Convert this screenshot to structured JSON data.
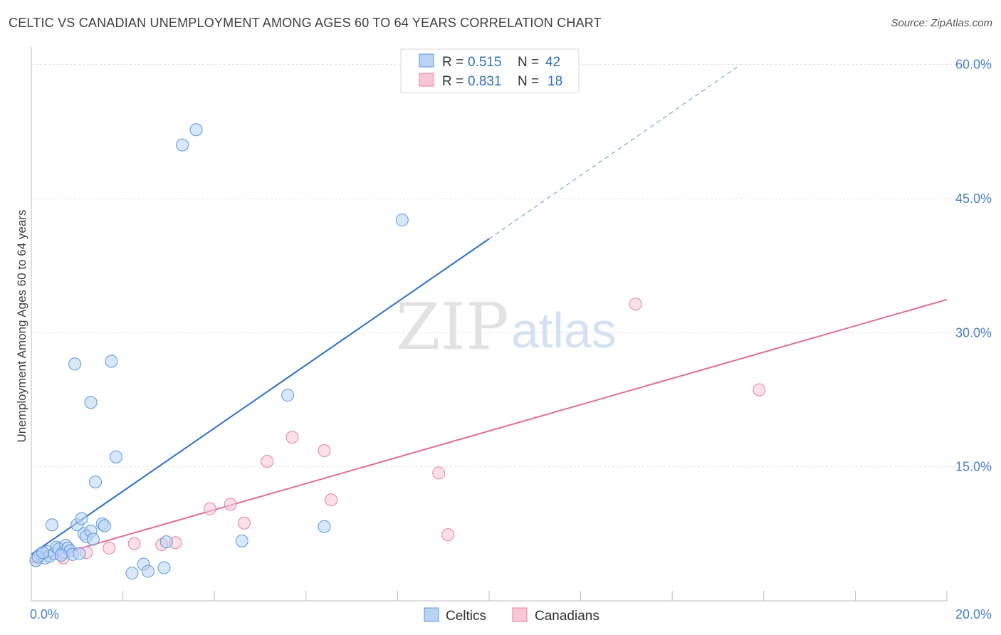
{
  "title": "CELTIC VS CANADIAN UNEMPLOYMENT AMONG AGES 60 TO 64 YEARS CORRELATION CHART",
  "source": "Source: ZipAtlas.com",
  "watermark": {
    "zip": "ZIP",
    "atlas": "atlas"
  },
  "colors": {
    "celtics": "#5b96dc",
    "celtics_fill": "#b9d3f5",
    "canadians": "#e77fa0",
    "canadians_fill": "#f8c6d4",
    "celtics_line": "#2a6fcb",
    "canadians_line": "#e06d95",
    "tick": "#4a7fc9"
  },
  "legend": {
    "rows": [
      {
        "r_label": "R =",
        "r_value": "0.515",
        "n_label": "N =",
        "n_value": "42"
      },
      {
        "r_label": "R =",
        "r_value": "0.831",
        "n_label": "N =",
        "n_value": "18"
      }
    ]
  },
  "bottom_legend": [
    "Celtics",
    "Canadians"
  ],
  "chart_data": {
    "type": "scatter",
    "title": "CELTIC VS CANADIAN UNEMPLOYMENT AMONG AGES 60 TO 64 YEARS CORRELATION CHART",
    "xlabel": "",
    "ylabel": "Unemployment Among Ages 60 to 64 years",
    "xlim": [
      0,
      20
    ],
    "ylim": [
      0,
      61
    ],
    "x_tick_labels": [
      "0.0%",
      "20.0%"
    ],
    "y_ticks": [
      15,
      30,
      45,
      60
    ],
    "y_tick_labels": [
      "15.0%",
      "30.0%",
      "45.0%",
      "60.0%"
    ],
    "series": [
      {
        "name": "Celtics",
        "points": [
          [
            0.1,
            4.5
          ],
          [
            0.2,
            5.2
          ],
          [
            0.3,
            4.8
          ],
          [
            0.35,
            5.5
          ],
          [
            0.4,
            5.0
          ],
          [
            0.5,
            5.3
          ],
          [
            0.55,
            6.0
          ],
          [
            0.6,
            5.8
          ],
          [
            0.7,
            5.4
          ],
          [
            0.75,
            6.2
          ],
          [
            0.8,
            5.9
          ],
          [
            0.85,
            5.6
          ],
          [
            0.9,
            5.2
          ],
          [
            0.45,
            8.5
          ],
          [
            1.0,
            8.5
          ],
          [
            1.1,
            9.2
          ],
          [
            1.15,
            7.5
          ],
          [
            1.2,
            7.2
          ],
          [
            1.3,
            7.8
          ],
          [
            1.35,
            6.9
          ],
          [
            1.55,
            8.6
          ],
          [
            1.6,
            8.4
          ],
          [
            0.95,
            26.5
          ],
          [
            1.3,
            22.2
          ],
          [
            1.4,
            13.3
          ],
          [
            1.75,
            26.8
          ],
          [
            1.85,
            16.1
          ],
          [
            2.2,
            3.1
          ],
          [
            2.45,
            4.1
          ],
          [
            2.55,
            3.3
          ],
          [
            2.9,
            3.7
          ],
          [
            2.95,
            6.6
          ],
          [
            3.3,
            51.0
          ],
          [
            3.6,
            52.7
          ],
          [
            4.6,
            6.7
          ],
          [
            5.6,
            23.0
          ],
          [
            6.4,
            8.3
          ],
          [
            8.1,
            42.6
          ],
          [
            0.15,
            4.9
          ],
          [
            0.25,
            5.4
          ],
          [
            0.65,
            5.1
          ],
          [
            1.05,
            5.3
          ]
        ],
        "trend": {
          "x0": 0,
          "y0": 5.2,
          "x1": 10.0,
          "y1": 40.5,
          "dash_to_x": 15.5,
          "dash_to_y": 60.0
        }
      },
      {
        "name": "Canadians",
        "points": [
          [
            0.1,
            4.5
          ],
          [
            0.7,
            4.8
          ],
          [
            1.2,
            5.4
          ],
          [
            1.7,
            5.9
          ],
          [
            2.25,
            6.4
          ],
          [
            2.85,
            6.3
          ],
          [
            3.15,
            6.5
          ],
          [
            3.9,
            10.3
          ],
          [
            4.35,
            10.8
          ],
          [
            4.65,
            8.7
          ],
          [
            5.15,
            15.6
          ],
          [
            5.7,
            18.3
          ],
          [
            6.4,
            16.8
          ],
          [
            6.55,
            11.3
          ],
          [
            8.9,
            14.3
          ],
          [
            9.1,
            7.4
          ],
          [
            13.2,
            33.2
          ],
          [
            15.9,
            23.6
          ]
        ],
        "trend": {
          "x0": 0,
          "y0": 4.3,
          "x1": 20.0,
          "y1": 33.7
        }
      }
    ]
  }
}
